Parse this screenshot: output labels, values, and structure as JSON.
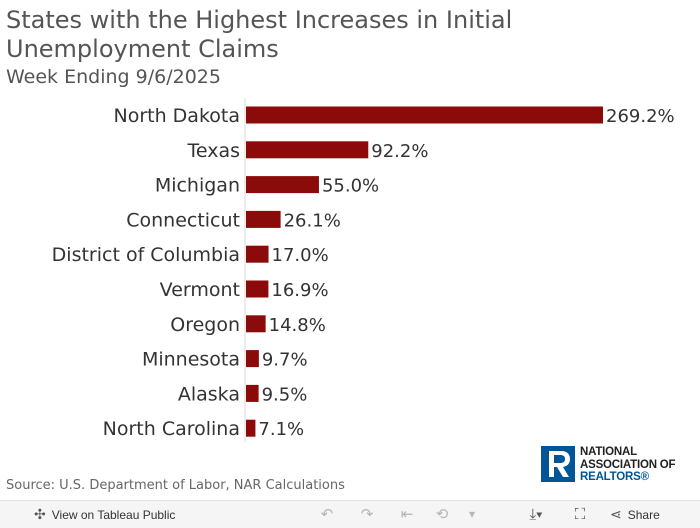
{
  "title": "States with the Highest Increases in Initial Unemployment Claims",
  "subtitle": "Week Ending 9/6/2025",
  "chart_data": {
    "type": "bar",
    "orientation": "horizontal",
    "categories": [
      "North Dakota",
      "Texas",
      "Michigan",
      "Connecticut",
      "District of Columbia",
      "Vermont",
      "Oregon",
      "Minnesota",
      "Alaska",
      "North Carolina"
    ],
    "values": [
      269.2,
      92.2,
      55.0,
      26.1,
      17.0,
      16.9,
      14.8,
      9.7,
      9.5,
      7.1
    ],
    "value_labels": [
      "269.2%",
      "92.2%",
      "55.0%",
      "26.1%",
      "17.0%",
      "16.9%",
      "14.8%",
      "9.7%",
      "9.5%",
      "7.1%"
    ],
    "xlim": [
      0,
      269.2
    ],
    "bar_color": "#8b0a0a",
    "grid": false
  },
  "source": "Source: U.S. Department of Labor, NAR Calculations",
  "logo": {
    "line1": "NATIONAL",
    "line2": "ASSOCIATION OF",
    "line3": "REALTORS®",
    "color": "#005596"
  },
  "toolbar": {
    "view_label": "View on Tableau Public",
    "share_label": "Share"
  }
}
